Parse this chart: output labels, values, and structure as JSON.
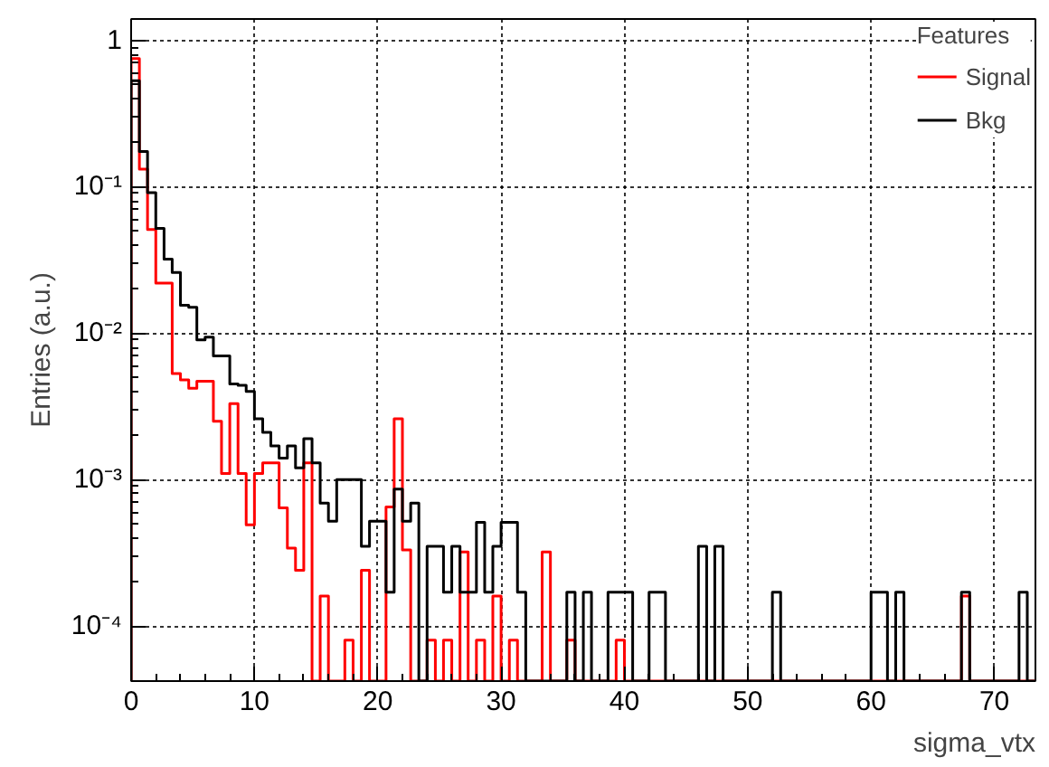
{
  "chart_data": {
    "type": "histogram",
    "xlabel": "sigma_vtx",
    "ylabel": "Entries (a.u.)",
    "legend_title": "Features",
    "bins": [
      0,
      0.67,
      1.33,
      2,
      2.67,
      3.33,
      4,
      4.67,
      5.33,
      6,
      6.67,
      7.33,
      8,
      8.67,
      9.33,
      10,
      10.67,
      11.33,
      12,
      12.67,
      13.33,
      14,
      14.67,
      15.33,
      16,
      16.67,
      17.33,
      18,
      18.67,
      19.33,
      20,
      20.67,
      21.33,
      22,
      22.67,
      23.33,
      24,
      24.67,
      25.33,
      26,
      26.67,
      27.33,
      28,
      28.67,
      29.33,
      30,
      30.67,
      31.33,
      32,
      32.67,
      33.33,
      34,
      34.67,
      35.33,
      36,
      36.67,
      37.33,
      38,
      38.67,
      39.33,
      40,
      40.67,
      41.33,
      42,
      42.67,
      43.33,
      44,
      44.67,
      45.33,
      46,
      46.67,
      47.33,
      48,
      48.67,
      49.33,
      50,
      50.67,
      51.33,
      52,
      52.67,
      53.33,
      54,
      54.67,
      55.33,
      56,
      56.67,
      57.33,
      58,
      58.67,
      59.33,
      60,
      60.67,
      61.33,
      62,
      62.67,
      63.33,
      64,
      64.67,
      65.33,
      66,
      66.67,
      67.33,
      68,
      68.67,
      69.33,
      70,
      70.67,
      71.33,
      72,
      72.67,
      73.33
    ],
    "series": [
      {
        "name": "Signal",
        "color": "#ff0000",
        "values": [
          0.75,
          0.132,
          0.051,
          0.022,
          0.022,
          0.0053,
          0.0048,
          0.0042,
          0.0047,
          0.0047,
          0.0025,
          0.0011,
          0.0033,
          0.0011,
          0.00049,
          0.0011,
          0.0013,
          0.0013,
          0.00064,
          0.00034,
          0.00024,
          0.0013,
          null,
          0.00016,
          null,
          null,
          8e-05,
          null,
          0.00024,
          null,
          null,
          0.00065,
          0.0026,
          0.00033,
          null,
          null,
          8e-05,
          null,
          8e-05,
          null,
          0.00032,
          null,
          8e-05,
          null,
          0.00016,
          null,
          8e-05,
          null,
          null,
          null,
          0.00032,
          null,
          null,
          8e-05,
          null,
          null,
          null,
          null,
          null,
          8e-05,
          null,
          null,
          null,
          null,
          null,
          null,
          null,
          null,
          null,
          null,
          null,
          null,
          null,
          null,
          null,
          null,
          null,
          null,
          null,
          null,
          null,
          null,
          null,
          null,
          null,
          null,
          null,
          null,
          null,
          null,
          null,
          null,
          null,
          null,
          null,
          null,
          null,
          null,
          null,
          null,
          null,
          0.00016,
          null,
          null,
          null,
          null,
          null,
          null,
          null,
          null
        ]
      },
      {
        "name": "Bkg",
        "color": "#000000",
        "values": [
          0.53,
          0.174,
          0.091,
          0.052,
          0.032,
          0.026,
          0.0155,
          0.015,
          0.009,
          0.0094,
          0.007,
          0.007,
          0.0045,
          0.0044,
          0.004,
          0.0026,
          0.0021,
          0.0017,
          0.0014,
          0.0017,
          0.0012,
          0.0019,
          0.0013,
          0.00069,
          0.00052,
          0.001,
          0.001,
          0.001,
          0.00035,
          0.00052,
          0.00052,
          0.00017,
          0.00086,
          0.00052,
          0.00069,
          null,
          0.00035,
          0.00035,
          0.00017,
          0.00035,
          0.00017,
          0.00017,
          0.00051,
          0.00017,
          0.00035,
          0.00051,
          0.00051,
          0.00017,
          null,
          null,
          null,
          null,
          null,
          0.00017,
          null,
          0.00017,
          null,
          null,
          0.00017,
          0.00017,
          0.00017,
          null,
          null,
          0.00017,
          0.00017,
          null,
          null,
          null,
          null,
          0.00035,
          null,
          0.00035,
          null,
          null,
          null,
          null,
          null,
          null,
          0.00017,
          null,
          null,
          null,
          null,
          null,
          null,
          null,
          null,
          null,
          null,
          null,
          0.00017,
          0.00017,
          null,
          0.00017,
          null,
          null,
          null,
          null,
          null,
          null,
          null,
          0.00017,
          null,
          null,
          null,
          null,
          null,
          null,
          0.00017,
          null
        ]
      }
    ],
    "xlim": [
      0,
      73.33
    ],
    "ylim": [
      4.2e-05,
      1.4
    ],
    "log": "y",
    "xticks": [
      0,
      10,
      20,
      30,
      40,
      50,
      60,
      70
    ],
    "yticks": [
      {
        "value": 0.0001,
        "label": "10⁻⁴"
      },
      {
        "value": 0.001,
        "label": "10⁻³"
      },
      {
        "value": 0.01,
        "label": "10⁻²"
      },
      {
        "value": 0.1,
        "label": "10⁻¹"
      },
      1
    ],
    "grid": true,
    "legend": "top right"
  }
}
